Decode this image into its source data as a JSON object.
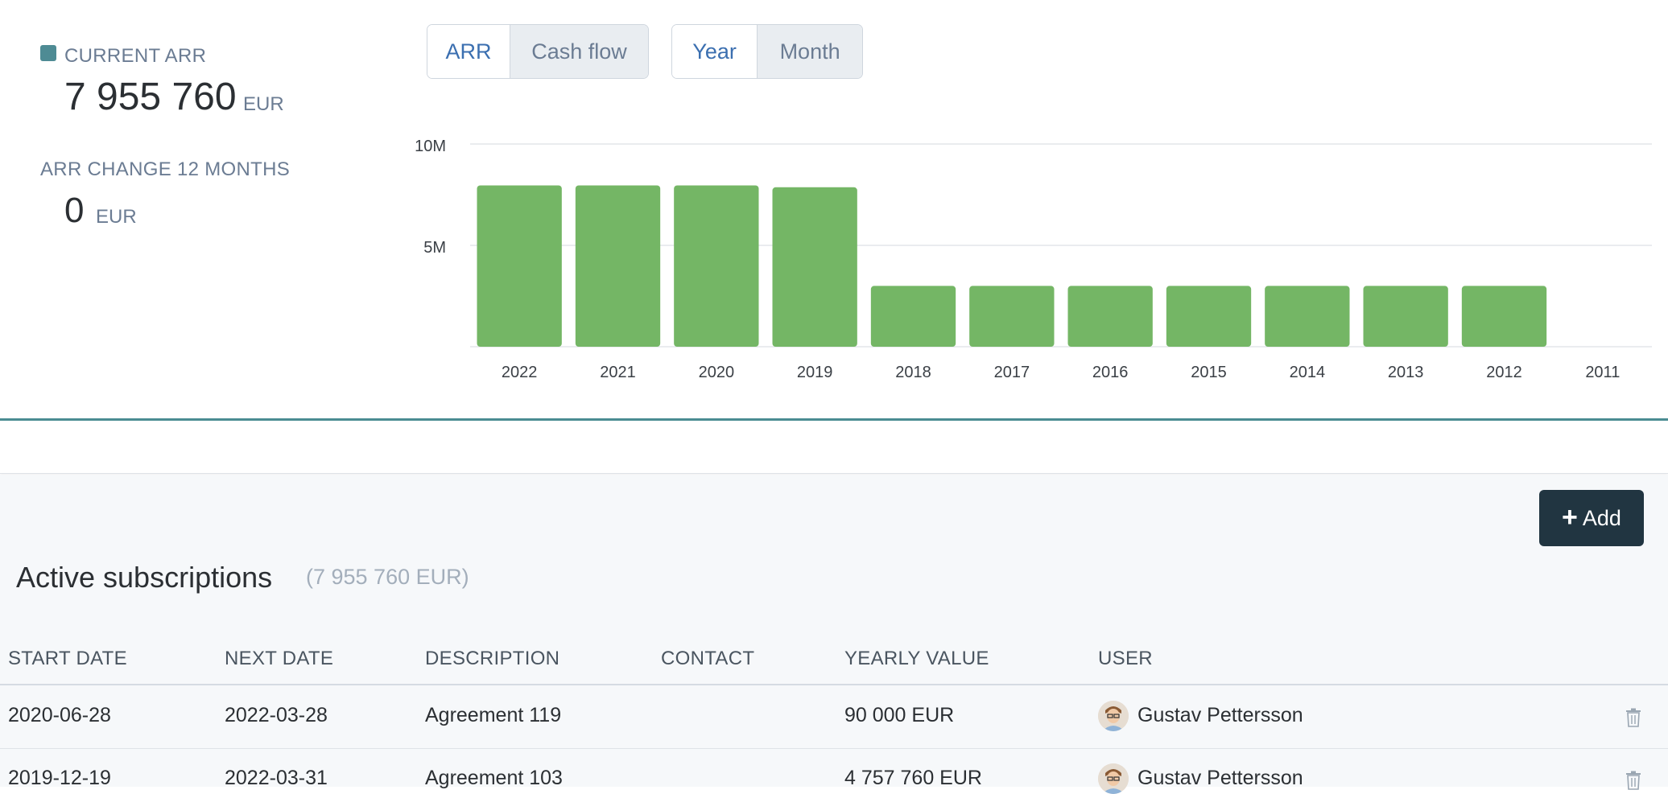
{
  "kpis": {
    "current_arr_label": "CURRENT ARR",
    "current_arr_value": "7 955 760",
    "current_arr_unit": "EUR",
    "arr_change_label": "ARR CHANGE 12 MONTHS",
    "arr_change_value": "0",
    "arr_change_unit": "EUR",
    "swatch_color": "#4e8b94"
  },
  "toggles": {
    "metric": [
      "ARR",
      "Cash flow"
    ],
    "metric_selected": "ARR",
    "period": [
      "Year",
      "Month"
    ],
    "period_selected": "Year"
  },
  "chart_data": {
    "type": "bar",
    "categories": [
      "2022",
      "2021",
      "2020",
      "2019",
      "2018",
      "2017",
      "2016",
      "2015",
      "2014",
      "2013",
      "2012",
      "2011"
    ],
    "values": [
      7955760,
      7955760,
      7955760,
      7865760,
      3000000,
      3000000,
      3000000,
      3000000,
      3000000,
      3000000,
      3000000,
      0
    ],
    "y_ticks": [
      "5M",
      "10M"
    ],
    "y_tick_values": [
      5000000,
      10000000
    ],
    "ylim": [
      0,
      10000000
    ],
    "bar_color": "#74b665",
    "grid": true
  },
  "actions": {
    "add_label": "Add"
  },
  "subscriptions": {
    "title": "Active subscriptions",
    "total": "(7 955 760 EUR)",
    "columns": [
      "START DATE",
      "NEXT DATE",
      "DESCRIPTION",
      "CONTACT",
      "YEARLY VALUE",
      "USER"
    ],
    "rows": [
      {
        "start": "2020-06-28",
        "next": "2022-03-28",
        "description": "Agreement 119",
        "contact": "",
        "value": "90 000 EUR",
        "user": "Gustav Pettersson"
      },
      {
        "start": "2019-12-19",
        "next": "2022-03-31",
        "description": "Agreement 103",
        "contact": "",
        "value": "4 757 760 EUR",
        "user": "Gustav Pettersson"
      }
    ]
  }
}
